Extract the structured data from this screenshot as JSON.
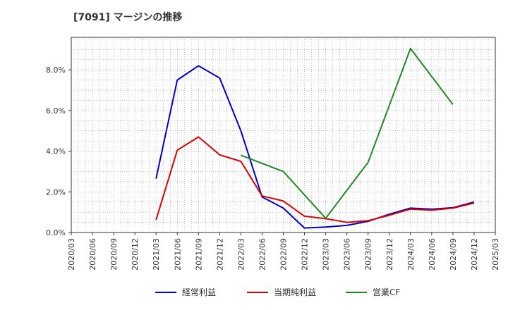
{
  "chart_data": {
    "type": "line",
    "title": "[7091]  マージンの推移",
    "xlabel": "",
    "ylabel": "",
    "x": [
      "2020/03",
      "2020/06",
      "2020/09",
      "2020/12",
      "2021/03",
      "2021/06",
      "2021/09",
      "2021/12",
      "2022/03",
      "2022/06",
      "2022/09",
      "2022/12",
      "2023/03",
      "2023/06",
      "2023/09",
      "2023/12",
      "2024/03",
      "2024/06",
      "2024/09",
      "2024/12",
      "2025/03"
    ],
    "ylim": [
      0,
      9.6
    ],
    "yticks": [
      0,
      2,
      4,
      6,
      8
    ],
    "ytick_labels": [
      "0.0%",
      "2.0%",
      "4.0%",
      "6.0%",
      "8.0%"
    ],
    "grid": true,
    "legend_position": "bottom",
    "series": [
      {
        "name": "経常利益",
        "color": "#0000cc",
        "values": [
          null,
          null,
          null,
          null,
          2.65,
          7.5,
          8.2,
          7.6,
          5.0,
          1.75,
          1.2,
          0.22,
          0.27,
          0.35,
          0.55,
          0.9,
          1.2,
          1.15,
          1.22,
          1.5,
          null
        ]
      },
      {
        "name": "当期純利益",
        "color": "#dd0000",
        "values": [
          null,
          null,
          null,
          null,
          0.62,
          4.05,
          4.7,
          3.82,
          3.5,
          1.8,
          1.55,
          0.8,
          0.68,
          0.5,
          0.58,
          0.85,
          1.15,
          1.1,
          1.2,
          1.45,
          null
        ]
      },
      {
        "name": "営業CF",
        "color": "#228822",
        "values": [
          null,
          null,
          null,
          null,
          null,
          null,
          null,
          null,
          3.8,
          null,
          3.0,
          null,
          0.7,
          null,
          3.45,
          null,
          9.05,
          null,
          6.3,
          null,
          null
        ]
      }
    ]
  }
}
